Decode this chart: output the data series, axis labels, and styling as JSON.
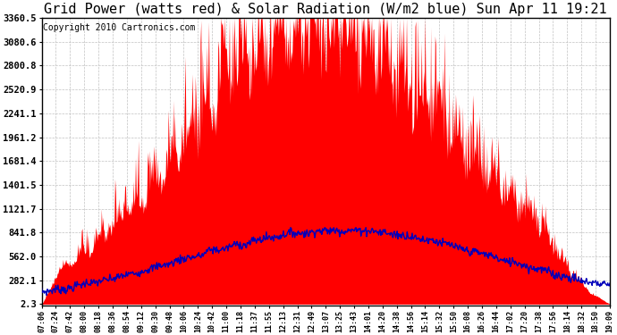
{
  "title": "Grid Power (watts red) & Solar Radiation (W/m2 blue) Sun Apr 11 19:21",
  "copyright": "Copyright 2010 Cartronics.com",
  "yticks": [
    2.3,
    282.1,
    562.0,
    841.8,
    1121.7,
    1401.5,
    1681.4,
    1961.2,
    2241.1,
    2520.9,
    2800.8,
    3080.6,
    3360.5
  ],
  "ymin": 2.3,
  "ymax": 3360.5,
  "bg_color": "#ffffff",
  "plot_bg_color": "#ffffff",
  "red_color": "#ff0000",
  "blue_color": "#0000bb",
  "grid_color": "#bbbbbb",
  "title_fontsize": 11,
  "copyright_fontsize": 7,
  "xtick_fontsize": 6,
  "ytick_fontsize": 7.5,
  "xtick_labels": [
    "07:06",
    "07:24",
    "07:42",
    "08:00",
    "08:18",
    "08:36",
    "08:54",
    "09:12",
    "09:30",
    "09:48",
    "10:06",
    "10:24",
    "10:42",
    "11:00",
    "11:18",
    "11:37",
    "11:55",
    "12:13",
    "12:31",
    "12:49",
    "13:07",
    "13:25",
    "13:43",
    "14:01",
    "14:20",
    "14:38",
    "14:56",
    "15:14",
    "15:32",
    "15:50",
    "16:08",
    "16:26",
    "16:44",
    "17:02",
    "17:20",
    "17:38",
    "17:56",
    "18:14",
    "18:32",
    "18:50",
    "19:09"
  ]
}
